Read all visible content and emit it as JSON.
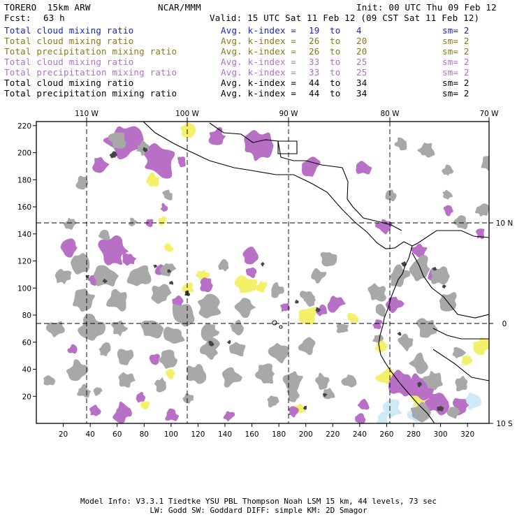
{
  "header": {
    "model": "TORERO  15km ARW",
    "org": "NCAR/MMM",
    "init": "Init: 00 UTC Thu 09 Feb 12",
    "fcst_label": "Fcst:",
    "fcst_hours": "63 h",
    "valid": "Valid: 15 UTC Sat 11 Feb 12 (09 CST Sat 11 Feb 12)"
  },
  "layers": [
    {
      "field": "Total cloud mixing ratio",
      "kindex": "Avg. k-index =",
      "from": "19",
      "to_word": "to",
      "to": "4",
      "sm": "sm= 2",
      "color": "#1c22c8"
    },
    {
      "field": "Total cloud mixing ratio",
      "kindex": "Avg. k-index =",
      "from": "26",
      "to_word": "to",
      "to": "20",
      "sm": "sm= 2",
      "color": "#8a7a12"
    },
    {
      "field": "Total precipitation mixing ratio",
      "kindex": "Avg. k-index =",
      "from": "26",
      "to_word": "to",
      "to": "20",
      "sm": "sm= 2",
      "color": "#8a7a12"
    },
    {
      "field": "Total cloud mixing ratio",
      "kindex": "Avg. k-index =",
      "from": "33",
      "to_word": "to",
      "to": "25",
      "sm": "sm= 2",
      "color": "#b070c8"
    },
    {
      "field": "Total precipitation mixing ratio",
      "kindex": "Avg. k-index =",
      "from": "33",
      "to_word": "to",
      "to": "25",
      "sm": "sm= 2",
      "color": "#b070c8"
    },
    {
      "field": "Total cloud mixing ratio",
      "kindex": "Avg. k-index =",
      "from": "44",
      "to_word": "to",
      "to": "34",
      "sm": "sm= 2",
      "color": "#000000"
    },
    {
      "field": "Total precipitation mixing ratio",
      "kindex": "Avg. k-index =",
      "from": "44",
      "to_word": "to",
      "to": "34",
      "sm": "sm= 2",
      "color": "#000000"
    }
  ],
  "map": {
    "lon_labels": [
      "110 W",
      "100 W",
      "90 W",
      "80 W",
      "70 W"
    ],
    "lat_labels": [
      "10 N",
      "0",
      "10 S"
    ],
    "y_ticks": [
      "220",
      "200",
      "180",
      "160",
      "140",
      "120",
      "100",
      "80",
      "60",
      "40",
      "20"
    ],
    "x_ticks": [
      "20",
      "40",
      "60",
      "80",
      "100",
      "120",
      "140",
      "160",
      "180",
      "200",
      "220",
      "240",
      "260",
      "280",
      "300",
      "320"
    ],
    "colors": {
      "gray": "#a8a8a8",
      "dark": "#444444",
      "violet": "#b86fc6",
      "yellow": "#f4f06a",
      "lightblue": "#cfeaf6"
    }
  },
  "footer": {
    "line1": "Model Info: V3.3.1   Tiedtke YSU PBL  Thompson    Noah LSM  15 km,   44 levels,   73 sec",
    "line2": "LW: Godd SW: Goddard DIFF: simple KM: 2D Smagor"
  }
}
